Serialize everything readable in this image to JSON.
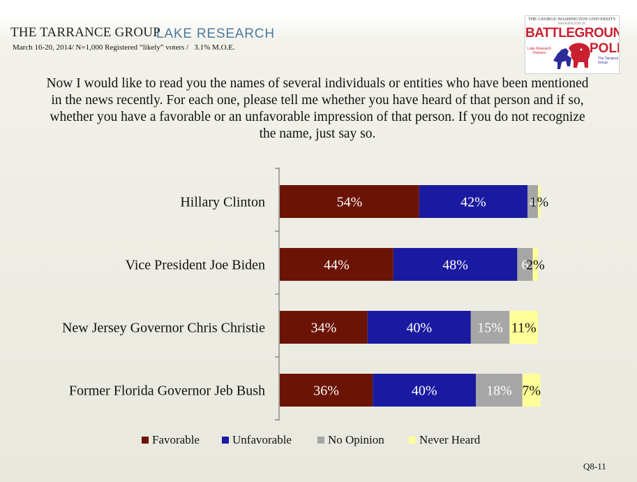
{
  "header": {
    "logo_tarrance": "THE TARRANCE GROUP",
    "logo_lake": "LAKE RESEARCH",
    "survey_info": "March 16-20, 2014/ N=1,000 Registered “likely” voters /   3.1% M.O.E."
  },
  "badge": {
    "university": "THE GEORGE WASHINGTON UNIVERSITY",
    "university_sub": "WASHINGTON DC",
    "battleground": "BATTLEGROUND",
    "poll": "POLL",
    "partner_left": "Lake Research Partners",
    "partner_right": "The Tarrance Group"
  },
  "question": "Now I would like to read you the names of several individuals or entities who have been mentioned in the news recently.  For each one, please tell me whether you have heard of that person and if so, whether you have a favorable or an unfavorable impression of that person.  If you do not recognize the name, just say so.",
  "chart_data": {
    "type": "bar",
    "orientation": "horizontal",
    "stacked": true,
    "categories": [
      "Hillary Clinton",
      "Vice President Joe Biden",
      "New Jersey Governor Chris Christie",
      "Former Florida Governor Jeb Bush"
    ],
    "series": [
      {
        "name": "Favorable",
        "color": "#6b1405",
        "values": [
          54,
          44,
          34,
          36
        ],
        "labels": [
          "54%",
          "44%",
          "34%",
          "36%"
        ]
      },
      {
        "name": "Unfavorable",
        "color": "#1a1aa0",
        "values": [
          42,
          48,
          40,
          40
        ],
        "labels": [
          "42%",
          "48%",
          "40%",
          "40%"
        ]
      },
      {
        "name": "No Opinion",
        "color": "#a6a6a6",
        "values": [
          4,
          6,
          15,
          18
        ],
        "labels": [
          "4",
          "6",
          "15%",
          "18%"
        ]
      },
      {
        "name": "Never Heard",
        "color": "#ffff99",
        "values": [
          1,
          2,
          11,
          7
        ],
        "labels": [
          "1%",
          "2%",
          "11%",
          "7%"
        ]
      }
    ],
    "xlim": [
      0,
      100
    ],
    "grid": false,
    "legend_position": "bottom"
  },
  "legend": [
    "Favorable",
    "Unfavorable",
    "No Opinion",
    "Never Heard"
  ],
  "footer": {
    "slide_id": "Q8-11"
  }
}
